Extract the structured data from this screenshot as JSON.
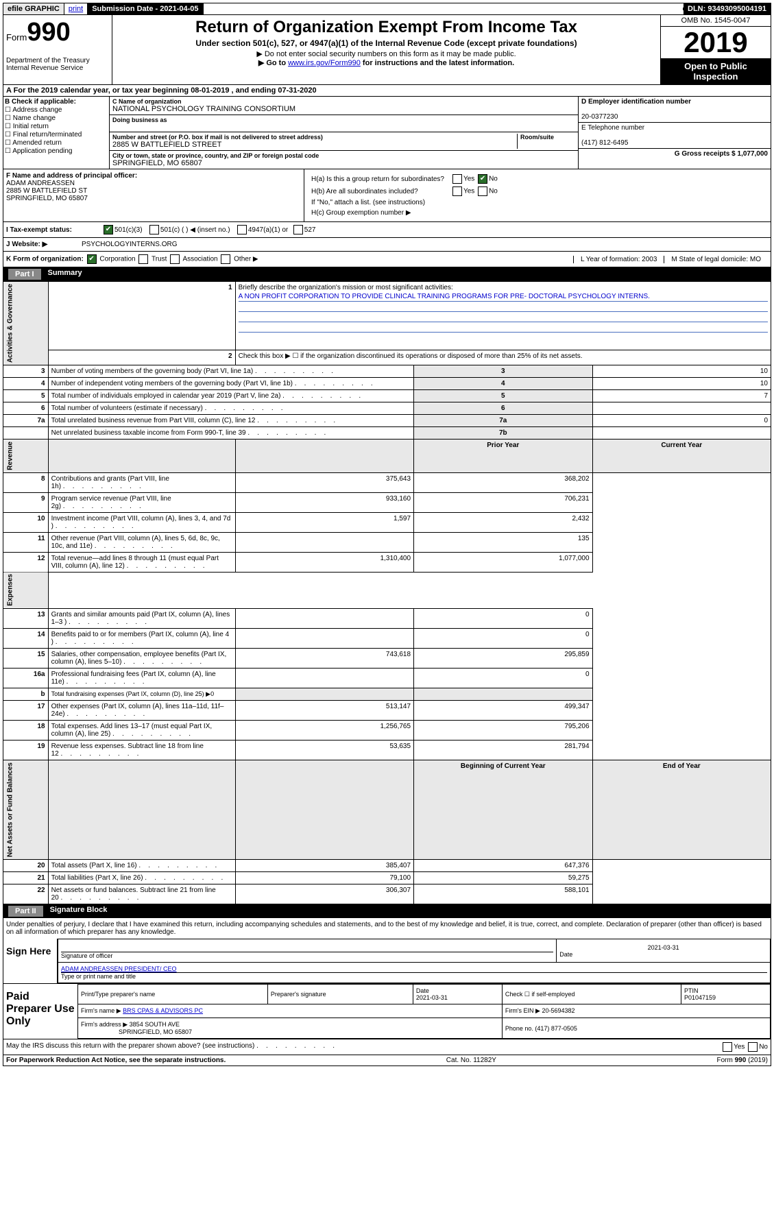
{
  "top": {
    "efile": "efile GRAPHIC",
    "print": "print",
    "sub_date_label": "Submission Date - 2021-04-05",
    "dln": "DLN: 93493095004191"
  },
  "header": {
    "form": "Form",
    "num": "990",
    "dept": "Department of the Treasury Internal Revenue Service",
    "title": "Return of Organization Exempt From Income Tax",
    "subtitle": "Under section 501(c), 527, or 4947(a)(1) of the Internal Revenue Code (except private foundations)",
    "note1": "▶ Do not enter social security numbers on this form as it may be made public.",
    "note2a": "▶ Go to ",
    "note2_link": "www.irs.gov/Form990",
    "note2b": " for instructions and the latest information.",
    "omb": "OMB No. 1545-0047",
    "year": "2019",
    "open": "Open to Public Inspection"
  },
  "section_a": "A For the 2019 calendar year, or tax year beginning 08-01-2019    , and ending 07-31-2020",
  "box_b": {
    "title": "B Check if applicable:",
    "opts": [
      "Address change",
      "Name change",
      "Initial return",
      "Final return/terminated",
      "Amended return",
      "Application pending"
    ]
  },
  "box_c": {
    "name_label": "C Name of organization",
    "name": "NATIONAL PSYCHOLOGY TRAINING CONSORTIUM",
    "dba_label": "Doing business as",
    "addr_label": "Number and street (or P.O. box if mail is not delivered to street address)",
    "room_label": "Room/suite",
    "addr": "2885 W BATTLEFIELD STREET",
    "city_label": "City or town, state or province, country, and ZIP or foreign postal code",
    "city": "SPRINGFIELD, MO  65807"
  },
  "box_d": {
    "d_label": "D Employer identification number",
    "d_val": "20-0377230",
    "e_label": "E Telephone number",
    "e_val": "(417) 812-6495",
    "g_label": "G Gross receipts $ 1,077,000"
  },
  "box_f": {
    "label": "F  Name and address of principal officer:",
    "name": "ADAM ANDREASSEN",
    "addr1": "2885 W BATTLEFIELD ST",
    "addr2": "SPRINGFIELD, MO  65807"
  },
  "box_h": {
    "a": "H(a)  Is this a group return for subordinates?",
    "b": "H(b)  Are all subordinates included?",
    "attach": "If \"No,\" attach a list. (see instructions)",
    "c": "H(c)  Group exemption number ▶"
  },
  "tax_status": {
    "label": "I    Tax-exempt status:",
    "o1": "501(c)(3)",
    "o2": "501(c) (  ) ◀ (insert no.)",
    "o3": "4947(a)(1) or",
    "o4": "527"
  },
  "website": {
    "label": "J    Website: ▶",
    "val": "PSYCHOLOGYINTERNS.ORG"
  },
  "k_row": {
    "label": "K Form of organization:",
    "o1": "Corporation",
    "o2": "Trust",
    "o3": "Association",
    "o4": "Other ▶",
    "l": "L Year of formation: 2003",
    "m": "M State of legal domicile: MO"
  },
  "part1": {
    "title": "Part I",
    "name": "Summary",
    "q1_label": "Briefly describe the organization's mission or most significant activities:",
    "q1_val": "A NON PROFIT CORPORATION TO PROVIDE CLINICAL TRAINING PROGRAMS FOR PRE- DOCTORAL PSYCHOLOGY INTERNS.",
    "q2": "Check this box ▶ ☐  if the organization discontinued its operations or disposed of more than 25% of its net assets.",
    "rows_gov": [
      {
        "n": "3",
        "label": "Number of voting members of the governing body (Part VI, line 1a)",
        "k": "3",
        "v": "10"
      },
      {
        "n": "4",
        "label": "Number of independent voting members of the governing body (Part VI, line 1b)",
        "k": "4",
        "v": "10"
      },
      {
        "n": "5",
        "label": "Total number of individuals employed in calendar year 2019 (Part V, line 2a)",
        "k": "5",
        "v": "7"
      },
      {
        "n": "6",
        "label": "Total number of volunteers (estimate if necessary)",
        "k": "6",
        "v": ""
      },
      {
        "n": "7a",
        "label": "Total unrelated business revenue from Part VIII, column (C), line 12",
        "k": "7a",
        "v": "0"
      },
      {
        "n": "",
        "label": "Net unrelated business taxable income from Form 990-T, line 39",
        "k": "7b",
        "v": ""
      }
    ],
    "col_prior": "Prior Year",
    "col_current": "Current Year",
    "rows_rev": [
      {
        "n": "8",
        "label": "Contributions and grants (Part VIII, line 1h)",
        "p": "375,643",
        "c": "368,202"
      },
      {
        "n": "9",
        "label": "Program service revenue (Part VIII, line 2g)",
        "p": "933,160",
        "c": "706,231"
      },
      {
        "n": "10",
        "label": "Investment income (Part VIII, column (A), lines 3, 4, and 7d )",
        "p": "1,597",
        "c": "2,432"
      },
      {
        "n": "11",
        "label": "Other revenue (Part VIII, column (A), lines 5, 6d, 8c, 9c, 10c, and 11e)",
        "p": "",
        "c": "135"
      },
      {
        "n": "12",
        "label": "Total revenue—add lines 8 through 11 (must equal Part VIII, column (A), line 12)",
        "p": "1,310,400",
        "c": "1,077,000"
      }
    ],
    "rows_exp": [
      {
        "n": "13",
        "label": "Grants and similar amounts paid (Part IX, column (A), lines 1–3 )",
        "p": "",
        "c": "0"
      },
      {
        "n": "14",
        "label": "Benefits paid to or for members (Part IX, column (A), line 4 )",
        "p": "",
        "c": "0"
      },
      {
        "n": "15",
        "label": "Salaries, other compensation, employee benefits (Part IX, column (A), lines 5–10)",
        "p": "743,618",
        "c": "295,859"
      },
      {
        "n": "16a",
        "label": "Professional fundraising fees (Part IX, column (A), line 11e)",
        "p": "",
        "c": "0"
      },
      {
        "n": "b",
        "label": "Total fundraising expenses (Part IX, column (D), line 25) ▶0",
        "p": "—",
        "c": "—"
      },
      {
        "n": "17",
        "label": "Other expenses (Part IX, column (A), lines 11a–11d, 11f–24e)",
        "p": "513,147",
        "c": "499,347"
      },
      {
        "n": "18",
        "label": "Total expenses. Add lines 13–17 (must equal Part IX, column (A), line 25)",
        "p": "1,256,765",
        "c": "795,206"
      },
      {
        "n": "19",
        "label": "Revenue less expenses. Subtract line 18 from line 12",
        "p": "53,635",
        "c": "281,794"
      }
    ],
    "col_begin": "Beginning of Current Year",
    "col_end": "End of Year",
    "rows_net": [
      {
        "n": "20",
        "label": "Total assets (Part X, line 16)",
        "p": "385,407",
        "c": "647,376"
      },
      {
        "n": "21",
        "label": "Total liabilities (Part X, line 26)",
        "p": "79,100",
        "c": "59,275"
      },
      {
        "n": "22",
        "label": "Net assets or fund balances. Subtract line 21 from line 20",
        "p": "306,307",
        "c": "588,101"
      }
    ],
    "vtab_gov": "Activities & Governance",
    "vtab_rev": "Revenue",
    "vtab_exp": "Expenses",
    "vtab_net": "Net Assets or Fund Balances"
  },
  "part2": {
    "title": "Part II",
    "name": "Signature Block",
    "perjury": "Under penalties of perjury, I declare that I have examined this return, including accompanying schedules and statements, and to the best of my knowledge and belief, it is true, correct, and complete. Declaration of preparer (other than officer) is based on all information of which preparer has any knowledge.",
    "sign_here": "Sign Here",
    "sig_officer": "Signature of officer",
    "sig_date": "2021-03-31",
    "date_label": "Date",
    "officer_name": "ADAM ANDREASSEN  PRESIDENT/ CEO",
    "type_label": "Type or print name and title",
    "paid": "Paid Preparer Use Only",
    "prep_name_label": "Print/Type preparer's name",
    "prep_sig_label": "Preparer's signature",
    "prep_date": "2021-03-31",
    "self_emp": "Check ☐ if self-employed",
    "ptin_label": "PTIN",
    "ptin": "P01047159",
    "firm_name_label": "Firm's name    ▶",
    "firm_name": "BRS CPAS & ADVISORS PC",
    "firm_ein": "Firm's EIN ▶ 20-5694382",
    "firm_addr_label": "Firm's address ▶",
    "firm_addr": "3854 SOUTH AVE",
    "firm_city": "SPRINGFIELD, MO  65807",
    "firm_phone": "Phone no. (417) 877-0505",
    "discuss": "May the IRS discuss this return with the preparer shown above? (see instructions)"
  },
  "footer": {
    "left": "For Paperwork Reduction Act Notice, see the separate instructions.",
    "mid": "Cat. No. 11282Y",
    "right": "Form 990 (2019)"
  }
}
